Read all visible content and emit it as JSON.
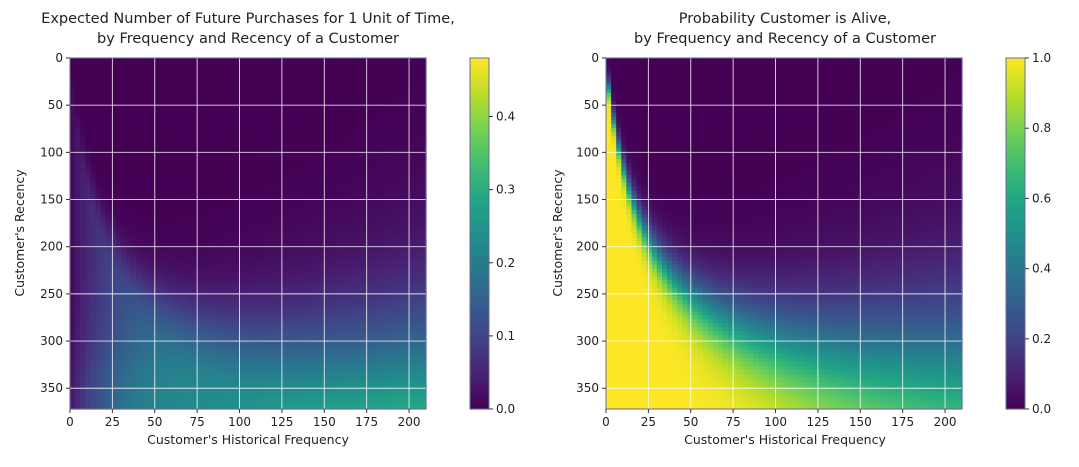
{
  "colors": {
    "cmap": "viridis",
    "grid": "#ffffff",
    "frame": "#6a6a9a"
  },
  "chart_data": [
    {
      "type": "heatmap",
      "title_line1": "Expected Number of Future Purchases for 1 Unit of Time,",
      "title_line2": "by Frequency and Recency of a Customer",
      "xlabel": "Customer's Historical Frequency",
      "ylabel": "Customer's Recency",
      "xlim": [
        0,
        210
      ],
      "ylim": [
        0,
        372
      ],
      "y_inverted": true,
      "xticks": [
        0,
        25,
        50,
        75,
        100,
        125,
        150,
        175,
        200
      ],
      "yticks": [
        0,
        50,
        100,
        150,
        200,
        250,
        300,
        350
      ],
      "grid": true,
      "colorbar": {
        "vmin": 0,
        "vmax": 0.48,
        "ticks": [
          0.0,
          0.1,
          0.2,
          0.3,
          0.4
        ],
        "tick_labels": [
          "0.0",
          "0.1",
          "0.2",
          "0.3",
          "0.4"
        ]
      },
      "model": "expected_purchases"
    },
    {
      "type": "heatmap",
      "title_line1": "Probability Customer is Alive,",
      "title_line2": "by Frequency and Recency of a Customer",
      "xlabel": "Customer's Historical Frequency",
      "ylabel": "Customer's Recency",
      "xlim": [
        0,
        210
      ],
      "ylim": [
        0,
        372
      ],
      "y_inverted": true,
      "xticks": [
        0,
        25,
        50,
        75,
        100,
        125,
        150,
        175,
        200
      ],
      "yticks": [
        0,
        50,
        100,
        150,
        200,
        250,
        300,
        350
      ],
      "grid": true,
      "colorbar": {
        "vmin": 0,
        "vmax": 1.0,
        "ticks": [
          0.0,
          0.2,
          0.4,
          0.6,
          0.8,
          1.0
        ],
        "tick_labels": [
          "0.0",
          "0.2",
          "0.4",
          "0.6",
          "0.8",
          "1.0"
        ]
      },
      "model": "probability_alive"
    }
  ]
}
